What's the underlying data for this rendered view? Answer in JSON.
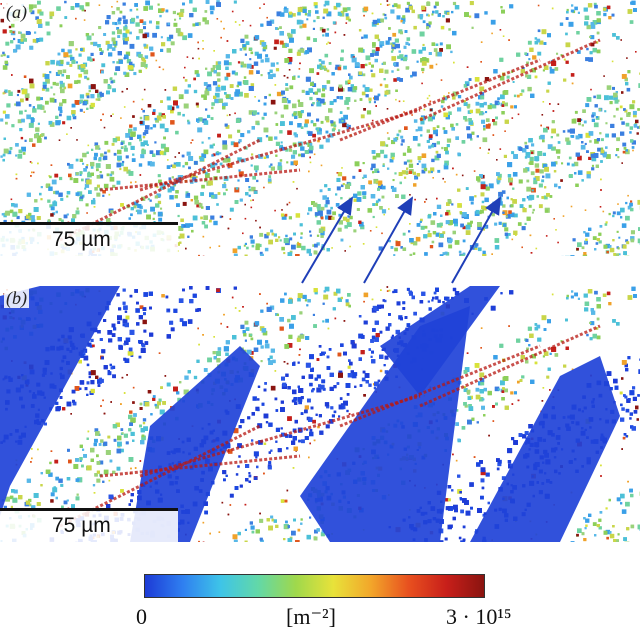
{
  "panels": [
    {
      "label": "(a)",
      "scale_label": "75 µm",
      "variant": "mixed"
    },
    {
      "label": "(b)",
      "scale_label": "75 µm",
      "variant": "blue"
    }
  ],
  "colorbar": {
    "min_label": "0",
    "unit_label": "[m⁻²]",
    "max_label": "3 · 10¹⁵",
    "colors": [
      "#1d3bd6",
      "#2f7ff0",
      "#3ec4e8",
      "#62d8a8",
      "#9fd84c",
      "#e8e23a",
      "#f2a62a",
      "#e8501f",
      "#c81f1a",
      "#8a1410"
    ]
  }
}
